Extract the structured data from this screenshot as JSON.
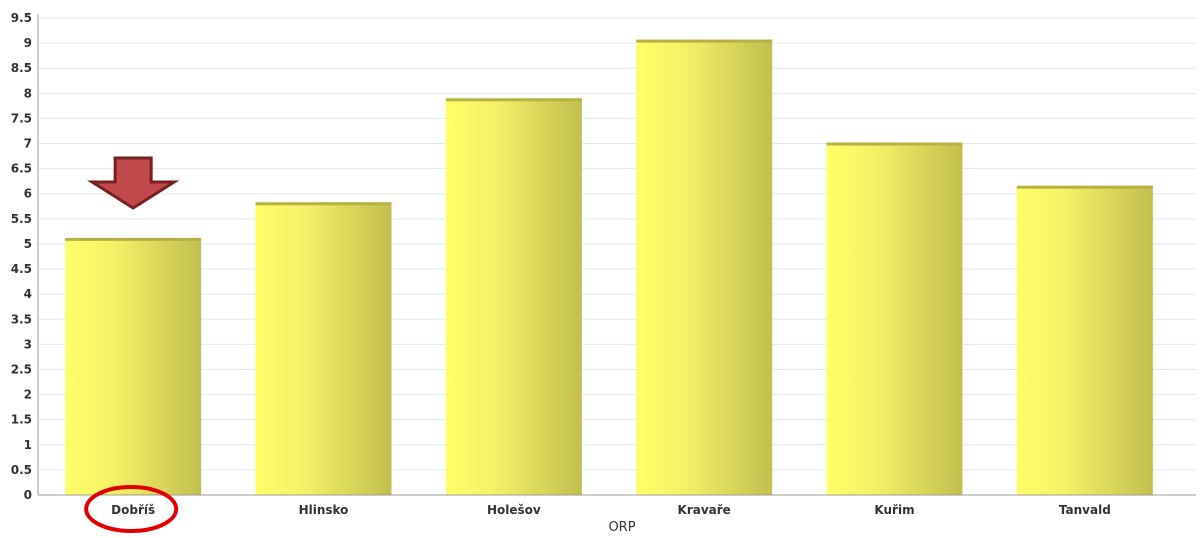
{
  "chart_data": {
    "type": "bar",
    "title": "",
    "xlabel": "ORP",
    "ylabel": "",
    "categories": [
      "Dobříš",
      "Hlinsko",
      "Holešov",
      "Kravaře",
      "Kuřim",
      "Tanvald"
    ],
    "values": [
      5.12,
      5.83,
      7.9,
      9.07,
      7.02,
      6.16
    ],
    "ylim": [
      0,
      9.5
    ],
    "yticks": [
      "0",
      "0.5",
      "1",
      "1.5",
      "2",
      "2.5",
      "3",
      "3.5",
      "4",
      "4.5",
      "5",
      "5.5",
      "6",
      "6.5",
      "7",
      "7.5",
      "8",
      "8.5",
      "9",
      "9.5"
    ],
    "grid": true,
    "legend": "none",
    "highlight_category": "Dobříš",
    "colors": {
      "bar_light": "#ffff66",
      "bar_dark": "#c2bf4e",
      "bar_top": "#b8b045",
      "grid": "#e6e6e6",
      "axis": "#9a9a9a",
      "arrow": "#c24a4a",
      "arrow_outline": "#7a1f1f",
      "circle": "#e00000"
    }
  }
}
